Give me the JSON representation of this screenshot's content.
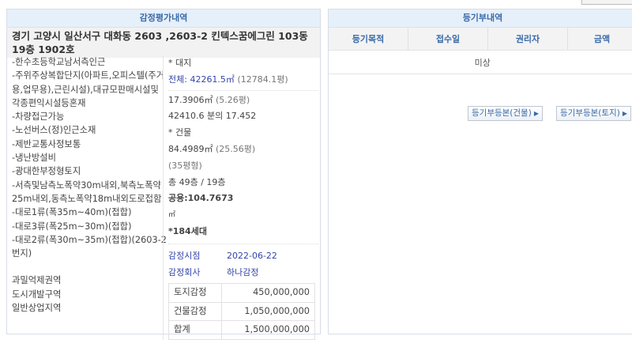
{
  "appraisal": {
    "title": "감정평가내역",
    "address": "경기 고양시 일산서구 대화동 2603 ,2603-2 킨텍스꿈에그린 103동 19층 1902호",
    "notes": [
      "-한수초등학교남서측인근",
      "-주위주상복합단지(아파트,오피스텔(주거용,업무용),근린시설),대규모판매시설및각종편익시설등혼재",
      "-차량접근가능",
      "-노선버스(정)인근소재",
      "-제반교통사정보통",
      "-냉난방설비",
      "-광대한부정형토지",
      "-서측및남측노폭약30m내외,북측노폭약25m내외,동측노폭약18m내외도로접함",
      "-대로1류(폭35m~40m)(접합)",
      "-대로3류(폭25m~30m)(접합)",
      "-대로2류(폭30m~35m)(접합)(2603-2번지)"
    ],
    "zones": [
      "과밀억제권역",
      "도시개발구역",
      "일반상업지역"
    ],
    "land_label": "* 대지",
    "land_total": "전체: 42261.5㎡",
    "land_total_pyeong": "(12784.1평)",
    "land_area": "17.3906㎡",
    "land_area_pyeong": "(5.26평)",
    "land_share": "42410.6 분의 17.452",
    "building_label": "* 건물",
    "building_area": "84.4989㎡",
    "building_area_pyeong": "(25.56평)",
    "building_type": "(35평형)",
    "floors": "총 49층 / 19층",
    "common_area": "공용:104.7673",
    "common_unit": "㎡",
    "households": "*184세대",
    "date_label": "감정시점",
    "date": "2022-06-22",
    "company_label": "감정회사",
    "company": "하나감정",
    "prices": [
      {
        "label": "토지감정",
        "value": "450,000,000"
      },
      {
        "label": "건물감정",
        "value": "1,050,000,000"
      },
      {
        "label": "합계",
        "value": "1,500,000,000"
      }
    ]
  },
  "registry": {
    "title": "등기부내역",
    "columns": [
      "등기목적",
      "접수일",
      "권리자",
      "금액"
    ],
    "empty": "미상",
    "btn_building": "등기부등본(건물)",
    "btn_land": "등기부등본(토지)",
    "arrow": "▶"
  }
}
